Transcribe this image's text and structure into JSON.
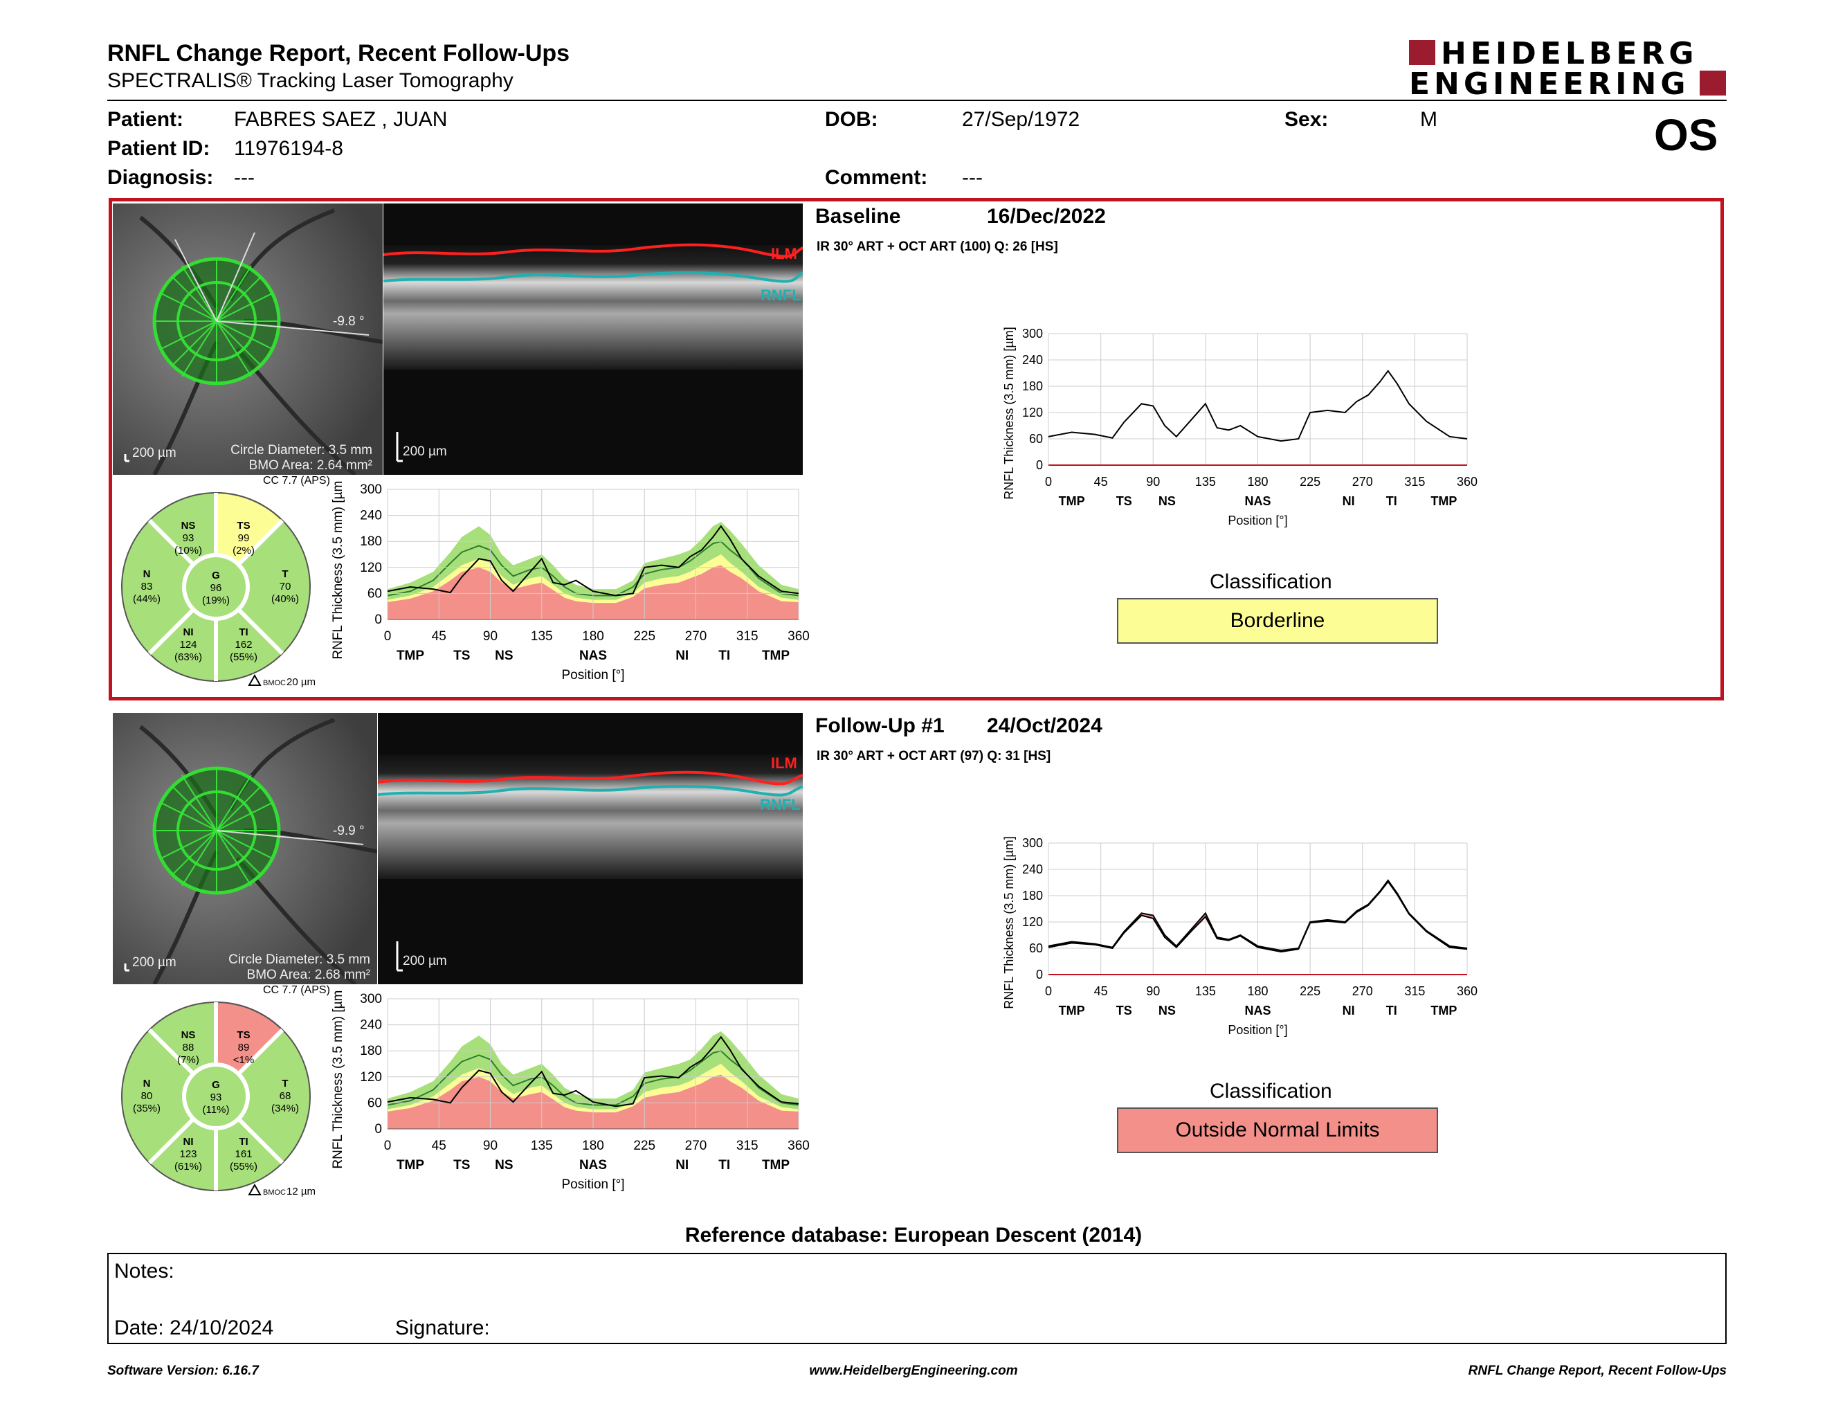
{
  "header": {
    "title": "RNFL Change Report, Recent Follow-Ups",
    "subtitle": "SPECTRALIS® Tracking Laser Tomography",
    "logo_line1": "HEIDELBERG",
    "logo_line2": "ENGINEERING",
    "eye": "OS"
  },
  "patient": {
    "patient_label": "Patient:",
    "patient_value": "FABRES SAEZ , JUAN",
    "id_label": "Patient ID:",
    "id_value": "11976194-8",
    "diag_label": "Diagnosis:",
    "diag_value": "---",
    "dob_label": "DOB:",
    "dob_value": "27/Sep/1972",
    "comment_label": "Comment:",
    "comment_value": "---",
    "sex_label": "Sex:",
    "sex_value": "M"
  },
  "colors": {
    "frame_red": "#c1121f",
    "normal_green": "#a7e07a",
    "borderline_yellow": "#fdfd96",
    "outside_red": "#f4908a",
    "logo_red": "#9b1c2e"
  },
  "exams": [
    {
      "title": "Baseline",
      "date": "16/Dec/2022",
      "acq": "IR 30° ART + OCT ART (100) Q: 26 [HS]",
      "angle": "-9.8 °",
      "scale_left": "200 µm",
      "scale_oct": "200 µm",
      "circle_diameter": "Circle Diameter: 3.5 mm",
      "bmo_area": "BMO Area: 2.64 mm²",
      "cc": "CC 7.7 (APS)",
      "ilm": "ILM",
      "rnfl": "RNFL",
      "bmoc": "20 µm",
      "sectors": {
        "NS": {
          "label": "NS",
          "value": "93",
          "pct": "(10%)"
        },
        "TS": {
          "label": "TS",
          "value": "99",
          "pct": "(2%)",
          "status": "borderline"
        },
        "N": {
          "label": "N",
          "value": "83",
          "pct": "(44%)"
        },
        "G": {
          "label": "G",
          "value": "96",
          "pct": "(19%)"
        },
        "T": {
          "label": "T",
          "value": "70",
          "pct": "(40%)"
        },
        "NI": {
          "label": "NI",
          "value": "124",
          "pct": "(63%)"
        },
        "TI": {
          "label": "TI",
          "value": "162",
          "pct": "(55%)"
        }
      },
      "classification_label": "Classification",
      "classification": "Borderline",
      "classification_color": "#fdfd96"
    },
    {
      "title": "Follow-Up #1",
      "date": "24/Oct/2024",
      "acq": "IR 30° ART + OCT ART (97) Q: 31 [HS]",
      "angle": "-9.9 °",
      "scale_left": "200 µm",
      "scale_oct": "200 µm",
      "circle_diameter": "Circle Diameter: 3.5 mm",
      "bmo_area": "BMO Area: 2.68 mm²",
      "cc": "CC 7.7 (APS)",
      "ilm": "ILM",
      "rnfl": "RNFL",
      "bmoc": "12 µm",
      "sectors": {
        "NS": {
          "label": "NS",
          "value": "88",
          "pct": "(7%)"
        },
        "TS": {
          "label": "TS",
          "value": "89",
          "pct": "<1%",
          "status": "outside"
        },
        "N": {
          "label": "N",
          "value": "80",
          "pct": "(35%)"
        },
        "G": {
          "label": "G",
          "value": "93",
          "pct": "(11%)"
        },
        "T": {
          "label": "T",
          "value": "68",
          "pct": "(34%)"
        },
        "NI": {
          "label": "NI",
          "value": "123",
          "pct": "(61%)"
        },
        "TI": {
          "label": "TI",
          "value": "161",
          "pct": "(55%)"
        }
      },
      "classification_label": "Classification",
      "classification": "Outside Normal Limits",
      "classification_color": "#f4908a"
    }
  ],
  "chart_data": [
    {
      "type": "line",
      "ylabel": "RNFL Thickness (3.5 mm) [µm]",
      "xlabel": "Position [°]",
      "ylim": [
        0,
        300
      ],
      "xlim": [
        0,
        360
      ],
      "yticks": [
        "0",
        "60",
        "120",
        "180",
        "240",
        "300"
      ],
      "xticks": [
        "0",
        "45",
        "90",
        "135",
        "180",
        "225",
        "270",
        "315",
        "360"
      ],
      "sector_labels": [
        "TMP",
        "TS",
        "NS",
        "NAS",
        "NI",
        "TI",
        "TMP"
      ],
      "x": [
        0,
        20,
        40,
        55,
        65,
        80,
        90,
        100,
        110,
        125,
        135,
        145,
        155,
        165,
        180,
        200,
        215,
        225,
        240,
        255,
        265,
        275,
        285,
        292,
        300,
        310,
        325,
        345,
        360
      ],
      "series": [
        {
          "name": "",
          "values": [
            65,
            75,
            70,
            62,
            98,
            140,
            135,
            90,
            65,
            110,
            140,
            85,
            80,
            90,
            65,
            55,
            60,
            120,
            125,
            120,
            145,
            160,
            190,
            215,
            185,
            140,
            100,
            65,
            60
          ]
        }
      ],
      "normative": {
        "upper": [
          70,
          85,
          110,
          155,
          190,
          215,
          195,
          150,
          125,
          140,
          150,
          125,
          95,
          80,
          70,
          70,
          90,
          130,
          140,
          150,
          160,
          185,
          215,
          225,
          205,
          175,
          125,
          80,
          70
        ],
        "median": [
          55,
          65,
          90,
          130,
          155,
          170,
          160,
          125,
          100,
          115,
          120,
          100,
          75,
          60,
          55,
          55,
          75,
          105,
          115,
          120,
          135,
          155,
          175,
          180,
          160,
          140,
          95,
          60,
          55
        ],
        "lower": [
          45,
          55,
          75,
          105,
          125,
          140,
          130,
          100,
          80,
          95,
          100,
          80,
          60,
          50,
          45,
          45,
          60,
          85,
          95,
          100,
          110,
          125,
          140,
          150,
          130,
          110,
          75,
          50,
          45
        ],
        "border": [
          40,
          48,
          65,
          90,
          110,
          120,
          110,
          85,
          70,
          80,
          85,
          68,
          50,
          42,
          38,
          38,
          52,
          72,
          80,
          85,
          95,
          105,
          120,
          125,
          110,
          95,
          65,
          42,
          40
        ]
      }
    },
    {
      "type": "line",
      "ylabel": "RNFL Thickness (3.5 mm) [µm]",
      "xlabel": "Position [°]",
      "ylim": [
        0,
        300
      ],
      "xlim": [
        0,
        360
      ],
      "yticks": [
        "0",
        "60",
        "120",
        "180",
        "240",
        "300"
      ],
      "xticks": [
        "0",
        "45",
        "90",
        "135",
        "180",
        "225",
        "270",
        "315",
        "360"
      ],
      "sector_labels": [
        "TMP",
        "TS",
        "NS",
        "NAS",
        "NI",
        "TI",
        "TMP"
      ],
      "x": [
        0,
        20,
        40,
        55,
        65,
        80,
        90,
        100,
        110,
        125,
        135,
        145,
        155,
        165,
        180,
        200,
        215,
        225,
        240,
        255,
        265,
        275,
        285,
        292,
        300,
        310,
        325,
        345,
        360
      ],
      "series": [
        {
          "name": "",
          "values": [
            62,
            72,
            68,
            60,
            95,
            135,
            128,
            85,
            62,
            105,
            132,
            82,
            78,
            88,
            62,
            52,
            58,
            118,
            122,
            118,
            142,
            158,
            188,
            212,
            182,
            138,
            98,
            62,
            58
          ]
        }
      ],
      "normative": {
        "upper": [
          70,
          85,
          110,
          155,
          190,
          215,
          195,
          150,
          125,
          140,
          150,
          125,
          95,
          80,
          70,
          70,
          90,
          130,
          140,
          150,
          160,
          185,
          215,
          225,
          205,
          175,
          125,
          80,
          70
        ],
        "median": [
          55,
          65,
          90,
          130,
          155,
          170,
          160,
          125,
          100,
          115,
          120,
          100,
          75,
          60,
          55,
          55,
          75,
          105,
          115,
          120,
          135,
          155,
          175,
          180,
          160,
          140,
          95,
          60,
          55
        ],
        "lower": [
          45,
          55,
          75,
          105,
          125,
          140,
          130,
          100,
          80,
          95,
          100,
          80,
          60,
          50,
          45,
          45,
          60,
          85,
          95,
          100,
          110,
          125,
          140,
          150,
          130,
          110,
          75,
          50,
          45
        ],
        "border": [
          40,
          48,
          65,
          90,
          110,
          120,
          110,
          85,
          70,
          80,
          85,
          68,
          50,
          42,
          38,
          38,
          52,
          72,
          80,
          85,
          95,
          105,
          120,
          125,
          110,
          95,
          65,
          42,
          40
        ]
      }
    },
    {
      "type": "line",
      "ylabel": "RNFL Thickness (3.5 mm) [µm]",
      "xlabel": "Position [°]",
      "ylim": [
        0,
        300
      ],
      "xlim": [
        0,
        360
      ],
      "yticks": [
        "0",
        "60",
        "120",
        "180",
        "240",
        "300"
      ],
      "xticks": [
        "0",
        "45",
        "90",
        "135",
        "180",
        "225",
        "270",
        "315",
        "360"
      ],
      "sector_labels": [
        "TMP",
        "TS",
        "NS",
        "NAS",
        "NI",
        "TI",
        "TMP"
      ],
      "x": [
        0,
        20,
        40,
        55,
        65,
        80,
        90,
        100,
        110,
        125,
        135,
        145,
        155,
        165,
        180,
        200,
        215,
        225,
        240,
        255,
        265,
        275,
        285,
        292,
        300,
        310,
        325,
        345,
        360
      ],
      "series": [
        {
          "name": "",
          "values": [
            65,
            75,
            70,
            62,
            98,
            140,
            135,
            90,
            65,
            110,
            140,
            85,
            80,
            90,
            65,
            55,
            60,
            120,
            125,
            120,
            145,
            160,
            190,
            215,
            185,
            140,
            100,
            65,
            60
          ]
        }
      ]
    },
    {
      "type": "line",
      "ylabel": "RNFL Thickness (3.5 mm) [µm]",
      "xlabel": "Position [°]",
      "ylim": [
        0,
        300
      ],
      "xlim": [
        0,
        360
      ],
      "yticks": [
        "0",
        "60",
        "120",
        "180",
        "240",
        "300"
      ],
      "xticks": [
        "0",
        "45",
        "90",
        "135",
        "180",
        "225",
        "270",
        "315",
        "360"
      ],
      "sector_labels": [
        "TMP",
        "TS",
        "NS",
        "NAS",
        "NI",
        "TI",
        "TMP"
      ],
      "x": [
        0,
        20,
        40,
        55,
        65,
        80,
        90,
        100,
        110,
        125,
        135,
        145,
        155,
        165,
        180,
        200,
        215,
        225,
        240,
        255,
        265,
        275,
        285,
        292,
        300,
        310,
        325,
        345,
        360
      ],
      "series": [
        {
          "name": "",
          "values": [
            65,
            75,
            70,
            62,
            98,
            140,
            135,
            90,
            65,
            110,
            140,
            85,
            80,
            90,
            65,
            55,
            60,
            120,
            125,
            120,
            145,
            160,
            190,
            215,
            185,
            140,
            100,
            65,
            60
          ]
        },
        {
          "name": "",
          "values": [
            62,
            72,
            68,
            60,
            95,
            135,
            128,
            85,
            62,
            105,
            132,
            82,
            78,
            88,
            62,
            52,
            58,
            118,
            122,
            118,
            142,
            158,
            188,
            212,
            182,
            138,
            98,
            62,
            58
          ]
        }
      ]
    }
  ],
  "reference": "Reference database: European Descent (2014)",
  "notes": {
    "notes_label": "Notes:",
    "date_label": "Date: 24/10/2024",
    "signature_label": "Signature:"
  },
  "footer": {
    "left": "Software Version: 6.16.7",
    "center": "www.HeidelbergEngineering.com",
    "right": "RNFL Change Report, Recent Follow-Ups"
  }
}
